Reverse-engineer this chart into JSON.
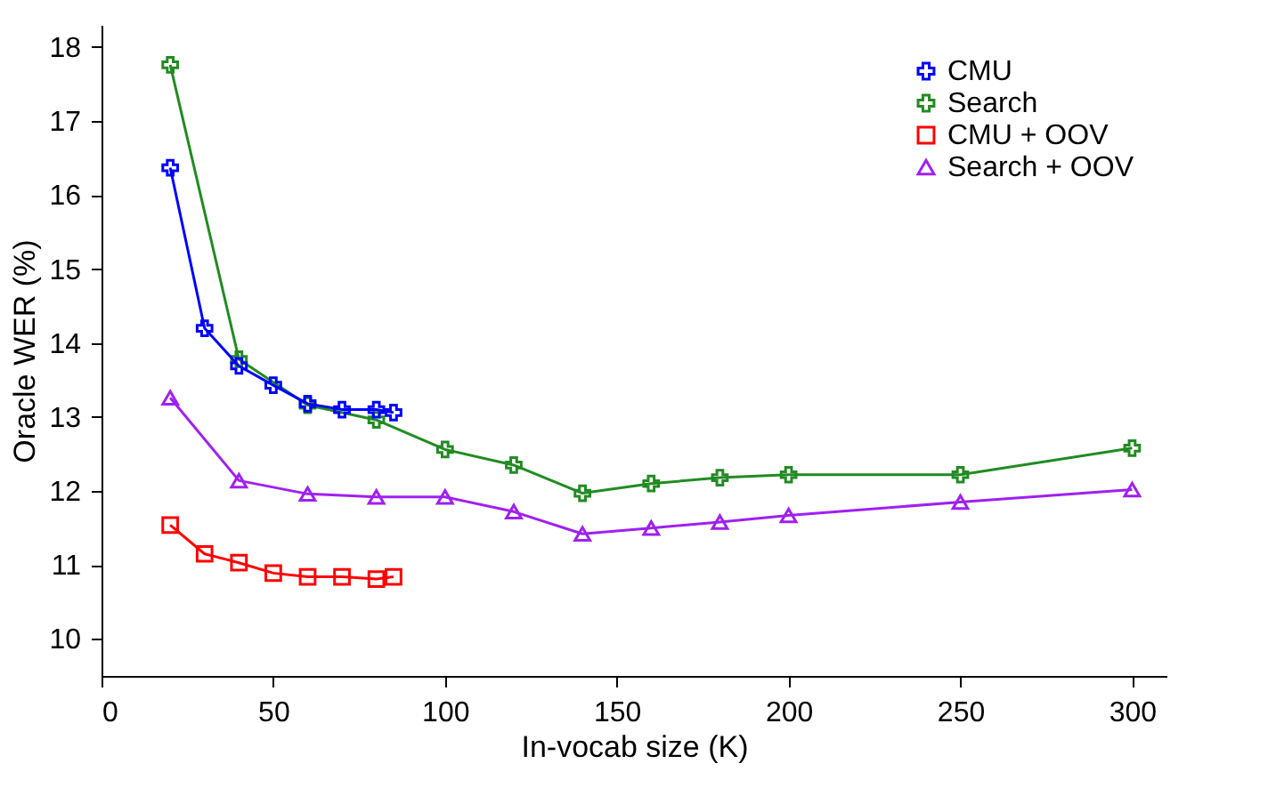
{
  "chart_data": {
    "type": "line",
    "xlabel": "In-vocab size (K)",
    "ylabel": "Oracle WER (%)",
    "xlim": [
      0,
      310
    ],
    "ylim": [
      9.5,
      18.3
    ],
    "xticks": [
      0,
      50,
      100,
      150,
      200,
      250,
      300
    ],
    "yticks": [
      10,
      11,
      12,
      13,
      14,
      15,
      16,
      17,
      18
    ],
    "grid": false,
    "legend": "top right",
    "line_style": "solid",
    "series": [
      {
        "name": "CMU",
        "color": "#0000ff",
        "marker": "cross",
        "x": [
          20,
          30,
          40,
          50,
          60,
          70,
          80,
          85
        ],
        "values": [
          16.37,
          14.2,
          13.69,
          13.43,
          13.18,
          13.1,
          13.1,
          13.06
        ]
      },
      {
        "name": "Search",
        "color": "#228b22",
        "marker": "cross",
        "x": [
          20,
          40,
          60,
          80,
          100,
          120,
          140,
          160,
          180,
          200,
          250,
          300
        ],
        "values": [
          17.76,
          13.78,
          13.16,
          12.96,
          12.56,
          12.35,
          11.97,
          12.1,
          12.18,
          12.22,
          12.22,
          12.58
        ]
      },
      {
        "name": "CMU + OOV",
        "color": "#ff0000",
        "marker": "square",
        "x": [
          20,
          30,
          40,
          50,
          60,
          70,
          80,
          85
        ],
        "values": [
          11.54,
          11.15,
          11.03,
          10.89,
          10.84,
          10.84,
          10.81,
          10.84
        ]
      },
      {
        "name": "Search + OOV",
        "color": "#a020f0",
        "marker": "triangle",
        "x": [
          20,
          40,
          60,
          80,
          100,
          120,
          140,
          160,
          180,
          200,
          250,
          300
        ],
        "values": [
          13.26,
          12.14,
          11.96,
          11.92,
          11.92,
          11.72,
          11.42,
          11.5,
          11.58,
          11.67,
          11.85,
          12.02
        ]
      }
    ]
  }
}
